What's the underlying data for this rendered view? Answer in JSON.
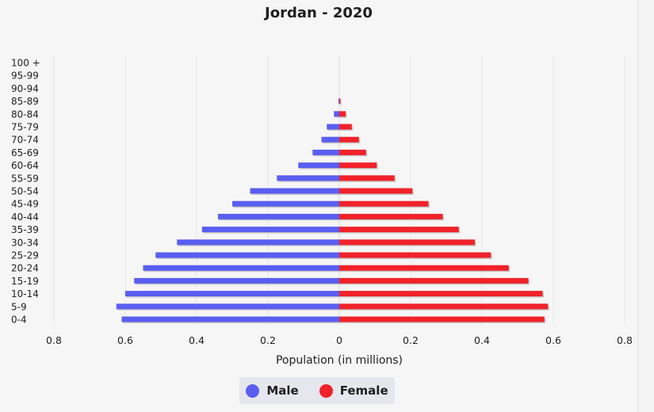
{
  "chart_data": {
    "type": "bar",
    "orientation": "horizontal",
    "title": "Jordan - 2020",
    "xlabel": "Population (in millions)",
    "ylabel": "",
    "xlim": [
      -0.8,
      0.8
    ],
    "x_tick_labels": [
      "0.8",
      "0.6",
      "0.4",
      "0.2",
      "0",
      "0.2",
      "0.4",
      "0.6",
      "0.8"
    ],
    "x_tick_values": [
      -0.8,
      -0.6,
      -0.4,
      -0.2,
      0,
      0.2,
      0.4,
      0.6,
      0.8
    ],
    "grid": "vertical",
    "legend_position": "bottom-center",
    "categories": [
      "100 +",
      "95-99",
      "90-94",
      "85-89",
      "80-84",
      "75-79",
      "70-74",
      "65-69",
      "60-64",
      "55-59",
      "50-54",
      "45-49",
      "40-44",
      "35-39",
      "30-34",
      "25-29",
      "20-24",
      "15-19",
      "10-14",
      "5-9",
      "0-4"
    ],
    "series": [
      {
        "name": "Male",
        "color": "#5a5ef0",
        "values": [
          0,
          0,
          0,
          0.002,
          0.015,
          0.035,
          0.05,
          0.075,
          0.115,
          0.175,
          0.25,
          0.3,
          0.34,
          0.385,
          0.455,
          0.515,
          0.55,
          0.575,
          0.6,
          0.625,
          0.61
        ]
      },
      {
        "name": "Female",
        "color": "#f0222a",
        "values": [
          0,
          0,
          0,
          0.003,
          0.018,
          0.035,
          0.055,
          0.075,
          0.105,
          0.155,
          0.205,
          0.25,
          0.29,
          0.335,
          0.38,
          0.425,
          0.475,
          0.53,
          0.57,
          0.585,
          0.575
        ]
      }
    ]
  },
  "legend": {
    "male_label": "Male",
    "female_label": "Female",
    "male_icon": "circle-icon",
    "female_icon": "circle-icon"
  }
}
